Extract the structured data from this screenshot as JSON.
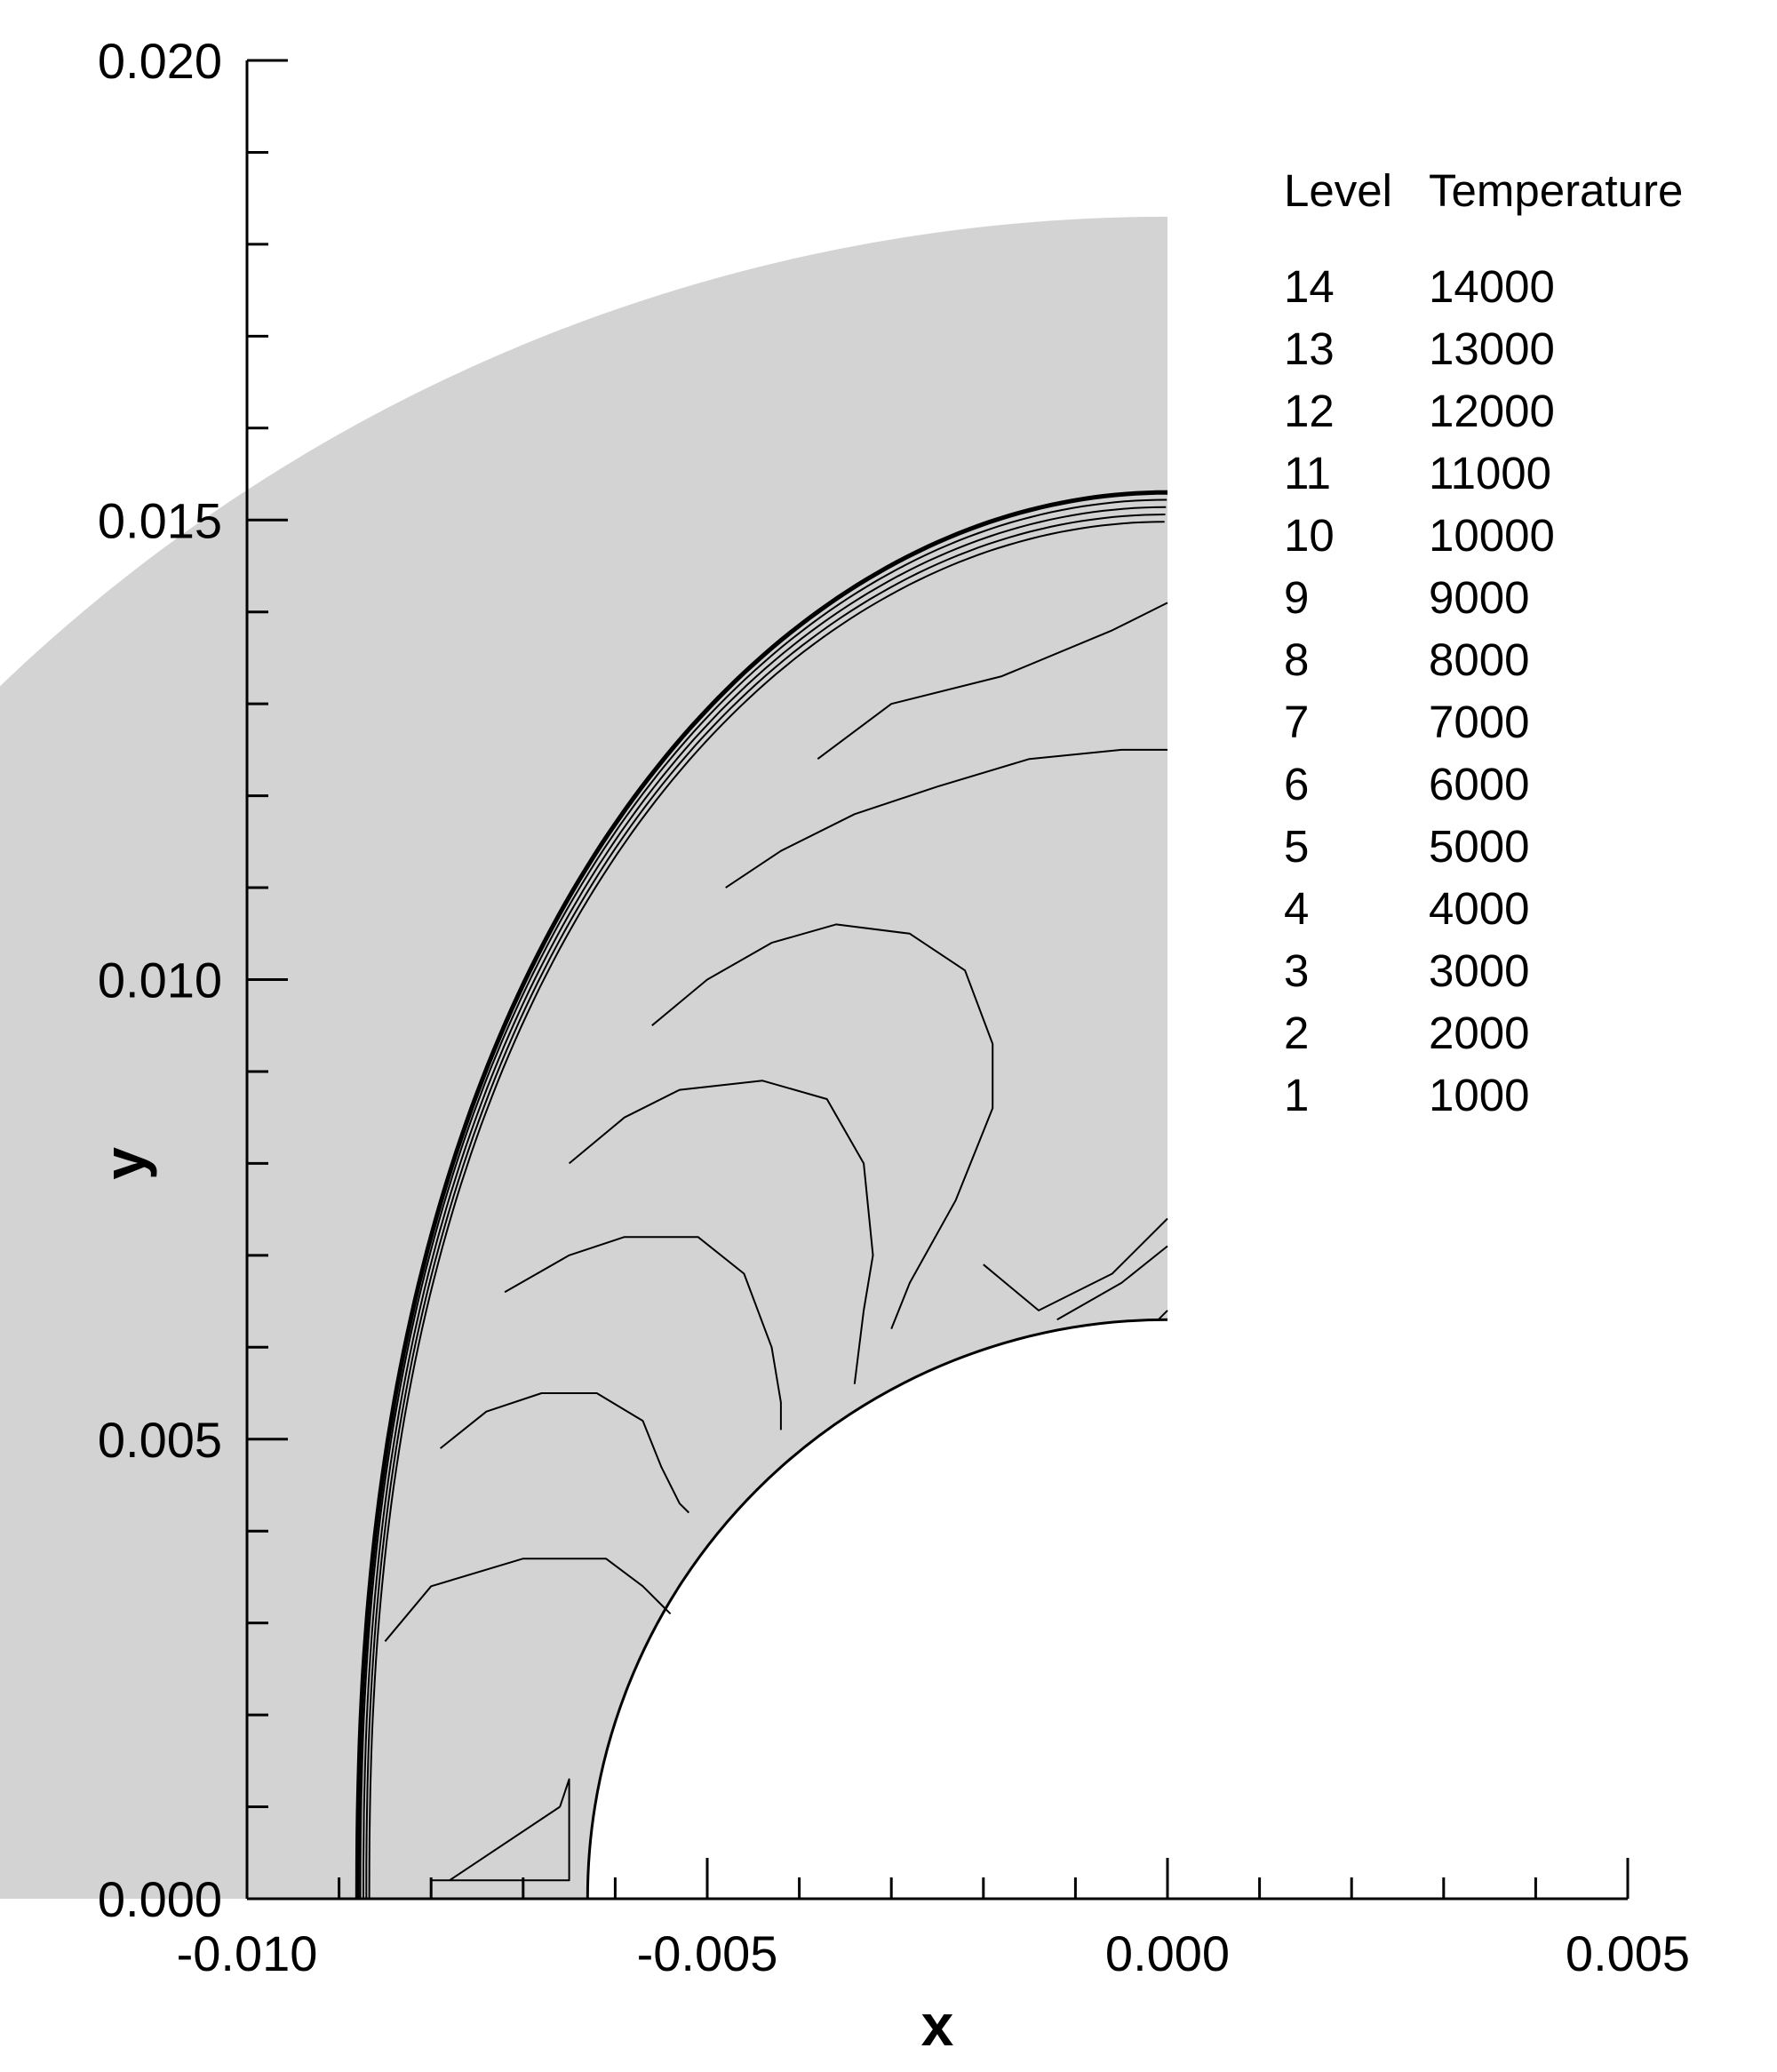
{
  "chart_data": {
    "type": "contour",
    "xlabel": "x",
    "ylabel": "y",
    "xlim": [
      -0.01,
      0.005
    ],
    "ylim": [
      0.0,
      0.02
    ],
    "x_ticks": [
      "-0.010",
      "-0.005",
      "0.000",
      "0.005"
    ],
    "y_ticks": [
      "0.000",
      "0.005",
      "0.010",
      "0.015",
      "0.020"
    ],
    "body_radius": 0.0063,
    "domain_outer_radius": 0.0183,
    "shock_standoff_x": -0.0088,
    "shock_y_at_x0": 0.0153,
    "legend": {
      "header": [
        "Level",
        "Temperature"
      ],
      "entries": [
        {
          "level": "14",
          "temperature": "14000"
        },
        {
          "level": "13",
          "temperature": "13000"
        },
        {
          "level": "12",
          "temperature": "12000"
        },
        {
          "level": "11",
          "temperature": "11000"
        },
        {
          "level": "10",
          "temperature": "10000"
        },
        {
          "level": "9",
          "temperature": "9000"
        },
        {
          "level": "8",
          "temperature": "8000"
        },
        {
          "level": "7",
          "temperature": "7000"
        },
        {
          "level": "6",
          "temperature": "6000"
        },
        {
          "level": "5",
          "temperature": "5000"
        },
        {
          "level": "4",
          "temperature": "4000"
        },
        {
          "level": "3",
          "temperature": "3000"
        },
        {
          "level": "2",
          "temperature": "2000"
        },
        {
          "level": "1",
          "temperature": "1000"
        }
      ]
    },
    "contour_lines": [
      {
        "points": [
          [
            -0.0066,
            0.001
          ],
          [
            -0.0078,
            0.0002
          ],
          [
            -0.008,
            0.0002
          ],
          [
            -0.0065,
            0.0002
          ],
          [
            -0.0065,
            0.0013
          ],
          [
            -0.0066,
            0.001
          ]
        ]
      },
      {
        "points": [
          [
            -0.0085,
            0.0028
          ],
          [
            -0.008,
            0.0034
          ],
          [
            -0.007,
            0.0037
          ],
          [
            -0.0061,
            0.0037
          ],
          [
            -0.0057,
            0.0034
          ],
          [
            -0.0055,
            0.0032
          ],
          [
            -0.0054,
            0.0031
          ]
        ]
      },
      {
        "points": [
          [
            -0.0079,
            0.0049
          ],
          [
            -0.0074,
            0.0053
          ],
          [
            -0.0068,
            0.0055
          ],
          [
            -0.0062,
            0.0055
          ],
          [
            -0.0057,
            0.0052
          ],
          [
            -0.0055,
            0.0047
          ],
          [
            -0.0053,
            0.0043
          ],
          [
            -0.0052,
            0.0042
          ]
        ]
      },
      {
        "points": [
          [
            -0.0072,
            0.0066
          ],
          [
            -0.0065,
            0.007
          ],
          [
            -0.0059,
            0.0072
          ],
          [
            -0.0051,
            0.0072
          ],
          [
            -0.0046,
            0.0068
          ],
          [
            -0.0043,
            0.006
          ],
          [
            -0.0042,
            0.0054
          ],
          [
            -0.0042,
            0.0051
          ]
        ]
      },
      {
        "points": [
          [
            -0.0065,
            0.008
          ],
          [
            -0.0059,
            0.0085
          ],
          [
            -0.0053,
            0.0088
          ],
          [
            -0.0044,
            0.0089
          ],
          [
            -0.0037,
            0.0087
          ],
          [
            -0.0033,
            0.008
          ],
          [
            -0.0032,
            0.007
          ],
          [
            -0.0033,
            0.0064
          ],
          [
            -0.0034,
            0.0056
          ]
        ]
      },
      {
        "points": [
          [
            -0.0056,
            0.0095
          ],
          [
            -0.005,
            0.01
          ],
          [
            -0.0043,
            0.0104
          ],
          [
            -0.0036,
            0.0106
          ],
          [
            -0.0028,
            0.0105
          ],
          [
            -0.0022,
            0.0101
          ],
          [
            -0.0019,
            0.0093
          ],
          [
            -0.0019,
            0.0086
          ],
          [
            -0.0023,
            0.0076
          ],
          [
            -0.0028,
            0.0067
          ],
          [
            -0.003,
            0.0062
          ]
        ]
      },
      {
        "points": [
          [
            -0.0048,
            0.011
          ],
          [
            -0.0042,
            0.0114
          ],
          [
            -0.0034,
            0.0118
          ],
          [
            -0.0025,
            0.0121
          ],
          [
            -0.0015,
            0.0124
          ],
          [
            -0.0005,
            0.0125
          ],
          [
            0.0,
            0.0125
          ]
        ]
      },
      {
        "points": [
          [
            -0.0038,
            0.0124
          ],
          [
            -0.003,
            0.013
          ],
          [
            -0.0018,
            0.0133
          ],
          [
            -0.0006,
            0.0138
          ],
          [
            0.0,
            0.0141
          ]
        ]
      },
      {
        "points": [
          [
            -0.002,
            0.0069
          ],
          [
            -0.0014,
            0.0064
          ],
          [
            -0.0006,
            0.0068
          ],
          [
            0.0,
            0.0074
          ]
        ]
      },
      {
        "points": [
          [
            -0.0012,
            0.0063
          ],
          [
            -0.0005,
            0.0067
          ],
          [
            0.0,
            0.0071
          ]
        ]
      },
      {
        "points": [
          [
            -0.0001,
            0.0063
          ],
          [
            0.0,
            0.0064
          ]
        ]
      }
    ]
  }
}
